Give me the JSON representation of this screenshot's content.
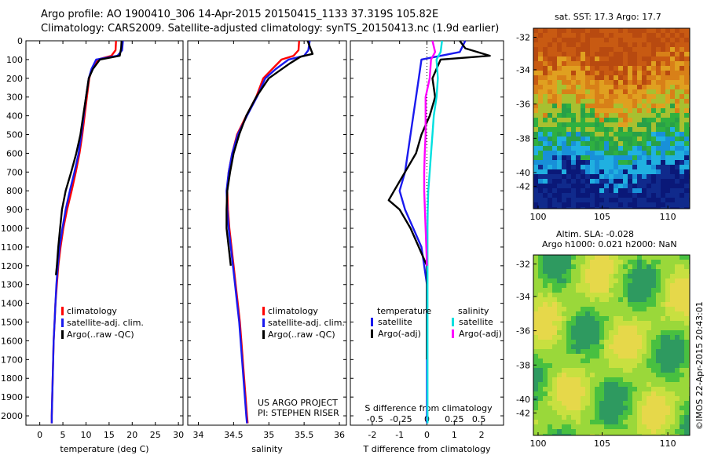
{
  "header": {
    "line1": "Argo profile: AO 1900410_306 14-Apr-2015 20150415_1133 37.319S 105.82E",
    "line2": "Climatology: CARS2009. Satellite-adjusted climatology: synTS_20150413.nc (1.9d earlier)"
  },
  "sst_map": {
    "title": "sat. SST: 17.3 Argo: 17.7",
    "xticks": [
      "100",
      "105",
      "110"
    ],
    "yticks": [
      "-32",
      "-34",
      "-36",
      "-38",
      "-40",
      "-42"
    ],
    "colors": {
      "warm": "#c85a12",
      "mid": "#e0a020",
      "green": "#2fb040",
      "cyan": "#20b0e0",
      "deep": "#102a8c"
    }
  },
  "sla_map": {
    "title_line1": "Altim. SLA: -0.028",
    "title_line2": "Argo h1000: 0.021 h2000: NaN",
    "xticks": [
      "100",
      "105",
      "110"
    ],
    "yticks": [
      "-32",
      "-34",
      "-36",
      "-38",
      "-40",
      "-42"
    ]
  },
  "side_text": "©IMOS 22-Apr-2015 20:43:01",
  "project": {
    "line1": "US ARGO PROJECT",
    "line2": "PI: STEPHEN RISER"
  },
  "colors": {
    "climatology": "#ff0000",
    "satellite": "#1a1aee",
    "argo": "#000000",
    "sat_s": "#00e0e0",
    "argo_s": "#ff00ff"
  },
  "chart_data": [
    {
      "type": "line",
      "xlabel": "temperature (deg C)",
      "ylabel": "",
      "xlim": [
        -3,
        31
      ],
      "ylim": [
        2050,
        0
      ],
      "xticks": [
        0,
        5,
        10,
        15,
        20,
        25,
        30
      ],
      "yticks": [
        0,
        100,
        200,
        300,
        400,
        500,
        600,
        700,
        800,
        900,
        1000,
        1100,
        1200,
        1300,
        1400,
        1500,
        1600,
        1700,
        1800,
        1900,
        2000
      ],
      "legend": [
        "climatology",
        "satellite-adj. clim.",
        "Argo(..raw -QC)"
      ],
      "series": [
        {
          "name": "climatology",
          "color": "#ff0000",
          "x": [
            16.5,
            16.4,
            15.5,
            12.5,
            11.3,
            10.7,
            10.2,
            9.7,
            9.2,
            8.6,
            7.8,
            6.9,
            5.9,
            5.1,
            4.5,
            4.0,
            3.7,
            3.4,
            3.2,
            3.0,
            2.9,
            2.8,
            2.7,
            2.6,
            2.6
          ],
          "y": [
            0,
            50,
            80,
            100,
            150,
            200,
            300,
            400,
            500,
            600,
            700,
            800,
            900,
            1000,
            1100,
            1200,
            1300,
            1400,
            1500,
            1600,
            1700,
            1800,
            1900,
            2000,
            2040
          ]
        },
        {
          "name": "satellite-adj. clim.",
          "color": "#1a1aee",
          "x": [
            18.0,
            17.8,
            16.8,
            12.2,
            11.2,
            10.6,
            10.0,
            9.5,
            9.0,
            8.4,
            7.5,
            6.5,
            5.6,
            4.9,
            4.3,
            3.9,
            3.6,
            3.4,
            3.2,
            3.0,
            2.9,
            2.8,
            2.7,
            2.6,
            2.6
          ],
          "y": [
            0,
            50,
            80,
            100,
            150,
            200,
            300,
            400,
            500,
            600,
            700,
            800,
            900,
            1000,
            1100,
            1200,
            1300,
            1400,
            1500,
            1600,
            1700,
            1800,
            1900,
            2000,
            2040
          ]
        },
        {
          "name": "Argo(..raw -QC)",
          "color": "#000000",
          "x": [
            17.7,
            17.6,
            17.3,
            13.0,
            11.5,
            10.6,
            10.0,
            9.4,
            8.8,
            7.9,
            6.8,
            5.6,
            4.8,
            4.4,
            4.0,
            3.7,
            3.5
          ],
          "y": [
            0,
            40,
            80,
            100,
            150,
            200,
            300,
            400,
            500,
            600,
            700,
            800,
            900,
            1000,
            1100,
            1200,
            1250
          ]
        }
      ]
    },
    {
      "type": "line",
      "xlabel": "salinity",
      "ylabel": "",
      "xlim": [
        33.85,
        36.1
      ],
      "ylim": [
        2050,
        0
      ],
      "xticks": [
        34,
        34.5,
        35,
        35.5,
        36
      ],
      "legend": [
        "climatology",
        "satellite-adj. clim.",
        "Argo(..raw -QC)"
      ],
      "series": [
        {
          "name": "climatology",
          "color": "#ff0000",
          "x": [
            35.43,
            35.42,
            35.35,
            35.18,
            35.05,
            34.92,
            34.82,
            34.68,
            34.55,
            34.48,
            34.43,
            34.41,
            34.42,
            34.44,
            34.47,
            34.5,
            34.53,
            34.56,
            34.59,
            34.61,
            34.63,
            34.65,
            34.67,
            34.69,
            34.7
          ],
          "y": [
            0,
            50,
            80,
            100,
            150,
            200,
            300,
            400,
            500,
            600,
            700,
            800,
            900,
            1000,
            1100,
            1200,
            1300,
            1400,
            1500,
            1600,
            1700,
            1800,
            1900,
            2000,
            2040
          ]
        },
        {
          "name": "satellite-adj. clim.",
          "color": "#1a1aee",
          "x": [
            35.58,
            35.56,
            35.5,
            35.28,
            35.1,
            34.95,
            34.83,
            34.69,
            34.56,
            34.48,
            34.43,
            34.4,
            34.41,
            34.43,
            34.46,
            34.49,
            34.52,
            34.55,
            34.58,
            34.6,
            34.62,
            34.64,
            34.66,
            34.68,
            34.69
          ],
          "y": [
            0,
            50,
            80,
            100,
            150,
            200,
            300,
            400,
            500,
            600,
            700,
            800,
            900,
            1000,
            1100,
            1200,
            1300,
            1400,
            1500,
            1600,
            1700,
            1800,
            1900,
            2000,
            2040
          ]
        },
        {
          "name": "Argo(..raw -QC)",
          "color": "#000000",
          "x": [
            35.55,
            35.62,
            35.45,
            35.3,
            35.15,
            35.0,
            34.82,
            34.68,
            34.58,
            34.5,
            34.45,
            34.41,
            34.4,
            34.4,
            34.43,
            34.46
          ],
          "y": [
            0,
            70,
            85,
            120,
            160,
            200,
            300,
            400,
            500,
            600,
            700,
            800,
            900,
            1000,
            1100,
            1200
          ]
        }
      ]
    },
    {
      "type": "line",
      "xlabel": "T difference from climatology",
      "ylabel": "",
      "xlim": [
        -2.8,
        2.8
      ],
      "ylim": [
        2050,
        0
      ],
      "xticks": [
        -2,
        -1,
        0,
        1,
        2
      ],
      "top_xlabel": "S difference from climatology",
      "top_xticks": [
        "-0.5",
        "-0.25",
        "0",
        "0.25",
        "0.5"
      ],
      "legend_groups": [
        "temperature",
        "salinity"
      ],
      "legend": [
        "satellite",
        "Argo(-adj)",
        "satellite",
        "Argo(-adj)"
      ],
      "series": [
        {
          "name": "satellite",
          "color": "#1a1aee",
          "x": [
            1.4,
            1.2,
            -0.2,
            -0.3,
            -0.4,
            -0.5,
            -0.6,
            -0.7,
            -0.8,
            -1.0,
            -0.8,
            -0.5,
            -0.2,
            -0.1,
            0,
            0,
            0,
            0,
            0,
            0,
            0,
            0,
            0,
            0
          ],
          "y": [
            0,
            60,
            100,
            200,
            300,
            400,
            500,
            600,
            700,
            800,
            900,
            1000,
            1100,
            1200,
            1300,
            1400,
            1500,
            1600,
            1700,
            1800,
            1900,
            2000,
            2040,
            2040
          ]
        },
        {
          "name": "Argo(-adj)",
          "color": "#000000",
          "x": [
            1.2,
            1.4,
            2.3,
            0.5,
            0.2,
            0.3,
            0.1,
            -0.2,
            -0.4,
            -0.8,
            -1.2,
            -1.4,
            -1.0,
            -0.6,
            -0.3,
            0,
            0,
            0,
            0
          ],
          "y": [
            0,
            40,
            80,
            100,
            200,
            300,
            400,
            500,
            600,
            700,
            800,
            850,
            900,
            1000,
            1100,
            1200,
            1300,
            1400,
            1700
          ]
        },
        {
          "name": "satellite (S)",
          "color": "#00e0e0",
          "x": [
            0.55,
            0.5,
            0.35,
            0.4,
            0.35,
            0.25,
            0.2,
            0.15,
            0.1,
            0.05,
            0.03,
            0.02,
            0.02,
            0.02,
            0.02,
            0.02,
            0.02,
            0.02,
            0.02,
            0.02
          ],
          "y": [
            0,
            60,
            100,
            200,
            300,
            400,
            500,
            600,
            700,
            800,
            900,
            1000,
            1100,
            1200,
            1300,
            1400,
            1500,
            1600,
            1800,
            2040
          ]
        },
        {
          "name": "Argo(-adj) (S)",
          "color": "#ff00ff",
          "x": [
            0.2,
            0.3,
            0.15,
            0.1,
            -0.05,
            -0.05,
            -0.05,
            -0.08,
            -0.1,
            -0.1,
            -0.05,
            0
          ],
          "y": [
            0,
            60,
            100,
            200,
            300,
            400,
            500,
            600,
            700,
            800,
            1000,
            1200
          ]
        }
      ]
    }
  ]
}
